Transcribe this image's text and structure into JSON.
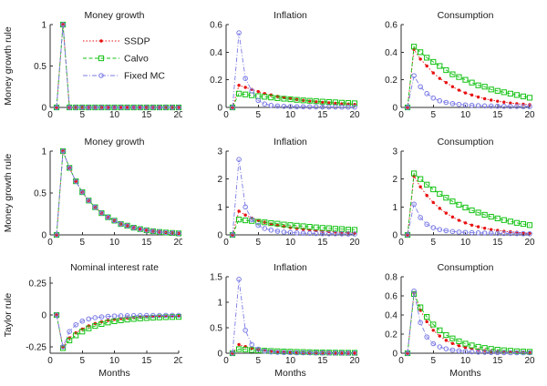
{
  "figure": {
    "background": "#ffffff",
    "axis_color": "#2f2f2f",
    "text_color": "#1a1a1a"
  },
  "legend": {
    "entries": [
      "SSDP",
      "Calvo",
      "Fixed MC"
    ],
    "box": false,
    "location": "inside-top-left-plot-1"
  },
  "series_styles": {
    "SSDP": {
      "color": "#e81111",
      "marker": "dot",
      "dash": "1.5,2"
    },
    "Calvo": {
      "color": "#12c212",
      "marker": "square",
      "dash": "4,2.5"
    },
    "Fixed MC": {
      "color": "#7b7be6",
      "marker": "circle",
      "dash": "5,2,1,2"
    }
  },
  "x_months": [
    1,
    2,
    3,
    4,
    5,
    6,
    7,
    8,
    9,
    10,
    11,
    12,
    13,
    14,
    15,
    16,
    17,
    18,
    19,
    20
  ],
  "chart_data": [
    {
      "type": "line",
      "title": "Money growth",
      "ylabel": "Money growth rule",
      "xlabel": "",
      "xlim": [
        0,
        20
      ],
      "ylim": [
        0,
        1
      ],
      "legend": true,
      "xticks": [
        0,
        5,
        10,
        15,
        20
      ],
      "xtick_labels": [
        "0",
        "5",
        "10",
        "15",
        "20"
      ],
      "yticks": [
        0,
        0.5,
        1
      ],
      "ytick_labels": [
        "0",
        "0.5",
        "1"
      ],
      "series": [
        {
          "name": "SSDP",
          "values": [
            0,
            1,
            0,
            0,
            0,
            0,
            0,
            0,
            0,
            0,
            0,
            0,
            0,
            0,
            0,
            0,
            0,
            0,
            0,
            0
          ]
        },
        {
          "name": "Calvo",
          "values": [
            0,
            1,
            0,
            0,
            0,
            0,
            0,
            0,
            0,
            0,
            0,
            0,
            0,
            0,
            0,
            0,
            0,
            0,
            0,
            0
          ]
        },
        {
          "name": "Fixed MC",
          "values": [
            0,
            1,
            0,
            0,
            0,
            0,
            0,
            0,
            0,
            0,
            0,
            0,
            0,
            0,
            0,
            0,
            0,
            0,
            0,
            0
          ]
        }
      ]
    },
    {
      "type": "line",
      "title": "Inflation",
      "ylabel": "",
      "xlabel": "",
      "xlim": [
        0,
        20
      ],
      "ylim": [
        0,
        0.6
      ],
      "legend": false,
      "xticks": [
        0,
        5,
        10,
        15,
        20
      ],
      "xtick_labels": [
        "0",
        "5",
        "10",
        "15",
        "20"
      ],
      "yticks": [
        0,
        0.2,
        0.4,
        0.6
      ],
      "ytick_labels": [
        "0",
        "0.2",
        "0.4",
        "0.6"
      ],
      "series": [
        {
          "name": "SSDP",
          "values": [
            0,
            0.16,
            0.145,
            0.13,
            0.115,
            0.1,
            0.09,
            0.08,
            0.072,
            0.064,
            0.057,
            0.051,
            0.046,
            0.041,
            0.037,
            0.033,
            0.03,
            0.027,
            0.024,
            0.022
          ]
        },
        {
          "name": "Calvo",
          "values": [
            0,
            0.1,
            0.094,
            0.088,
            0.082,
            0.077,
            0.072,
            0.067,
            0.063,
            0.059,
            0.055,
            0.051,
            0.048,
            0.045,
            0.042,
            0.039,
            0.037,
            0.034,
            0.032,
            0.03
          ]
        },
        {
          "name": "Fixed MC",
          "values": [
            0,
            0.54,
            0.21,
            0.12,
            0.05,
            0.025,
            0.015,
            0.01,
            0.008,
            0.006,
            0.005,
            0.005,
            0.004,
            0.004,
            0.003,
            0.003,
            0.003,
            0.002,
            0.002,
            0.002
          ]
        }
      ]
    },
    {
      "type": "line",
      "title": "Consumption",
      "ylabel": "",
      "xlabel": "",
      "xlim": [
        0,
        20
      ],
      "ylim": [
        0,
        0.6
      ],
      "legend": false,
      "xticks": [
        0,
        5,
        10,
        15,
        20
      ],
      "xtick_labels": [
        "0",
        "5",
        "10",
        "15",
        "20"
      ],
      "yticks": [
        0,
        0.2,
        0.4,
        0.6
      ],
      "ytick_labels": [
        "0",
        "0.2",
        "0.4",
        "0.6"
      ],
      "series": [
        {
          "name": "SSDP",
          "values": [
            0,
            0.42,
            0.35,
            0.3,
            0.25,
            0.21,
            0.18,
            0.15,
            0.125,
            0.105,
            0.09,
            0.075,
            0.063,
            0.053,
            0.045,
            0.038,
            0.032,
            0.027,
            0.023,
            0.02
          ]
        },
        {
          "name": "Calvo",
          "values": [
            0,
            0.44,
            0.4,
            0.36,
            0.33,
            0.3,
            0.27,
            0.24,
            0.22,
            0.2,
            0.18,
            0.16,
            0.15,
            0.13,
            0.12,
            0.11,
            0.1,
            0.09,
            0.08,
            0.07
          ]
        },
        {
          "name": "Fixed MC",
          "values": [
            0,
            0.23,
            0.15,
            0.1,
            0.068,
            0.048,
            0.036,
            0.028,
            0.022,
            0.018,
            0.015,
            0.013,
            0.011,
            0.01,
            0.009,
            0.008,
            0.007,
            0.007,
            0.006,
            0.006
          ]
        }
      ]
    },
    {
      "type": "line",
      "title": "Money growth",
      "ylabel": "Money growth rule",
      "xlabel": "",
      "xlim": [
        0,
        20
      ],
      "ylim": [
        0,
        1
      ],
      "legend": false,
      "xticks": [
        0,
        5,
        10,
        15,
        20
      ],
      "xtick_labels": [
        "0",
        "5",
        "10",
        "15",
        "20"
      ],
      "yticks": [
        0,
        0.5,
        1
      ],
      "ytick_labels": [
        "0",
        "0.5",
        "1"
      ],
      "series": [
        {
          "name": "SSDP",
          "values": [
            0,
            1,
            0.8,
            0.64,
            0.51,
            0.41,
            0.33,
            0.26,
            0.21,
            0.17,
            0.13,
            0.11,
            0.086,
            0.069,
            0.055,
            0.044,
            0.035,
            0.028,
            0.023,
            0.018
          ]
        },
        {
          "name": "Calvo",
          "values": [
            0,
            1,
            0.8,
            0.64,
            0.51,
            0.41,
            0.33,
            0.26,
            0.21,
            0.17,
            0.13,
            0.11,
            0.086,
            0.069,
            0.055,
            0.044,
            0.035,
            0.028,
            0.023,
            0.018
          ]
        },
        {
          "name": "Fixed MC",
          "values": [
            0,
            1,
            0.8,
            0.64,
            0.51,
            0.41,
            0.33,
            0.26,
            0.21,
            0.17,
            0.13,
            0.11,
            0.086,
            0.069,
            0.055,
            0.044,
            0.035,
            0.028,
            0.023,
            0.018
          ]
        }
      ]
    },
    {
      "type": "line",
      "title": "Inflation",
      "ylabel": "",
      "xlabel": "",
      "xlim": [
        0,
        20
      ],
      "ylim": [
        0,
        3
      ],
      "legend": false,
      "xticks": [
        0,
        5,
        10,
        15,
        20
      ],
      "xtick_labels": [
        "0",
        "5",
        "10",
        "15",
        "20"
      ],
      "yticks": [
        0,
        1,
        2,
        3
      ],
      "ytick_labels": [
        "0",
        "1",
        "2",
        "3"
      ],
      "series": [
        {
          "name": "SSDP",
          "values": [
            0,
            0.85,
            0.71,
            0.6,
            0.52,
            0.45,
            0.39,
            0.34,
            0.3,
            0.26,
            0.23,
            0.2,
            0.17,
            0.15,
            0.13,
            0.12,
            0.1,
            0.09,
            0.08,
            0.07
          ]
        },
        {
          "name": "Calvo",
          "values": [
            0,
            0.55,
            0.52,
            0.5,
            0.47,
            0.45,
            0.42,
            0.4,
            0.37,
            0.35,
            0.33,
            0.31,
            0.29,
            0.27,
            0.25,
            0.24,
            0.22,
            0.21,
            0.19,
            0.18
          ]
        },
        {
          "name": "Fixed MC",
          "values": [
            0,
            2.7,
            1.0,
            0.55,
            0.34,
            0.23,
            0.17,
            0.13,
            0.1,
            0.085,
            0.07,
            0.06,
            0.055,
            0.05,
            0.045,
            0.04,
            0.04,
            0.035,
            0.03,
            0.03
          ]
        }
      ]
    },
    {
      "type": "line",
      "title": "Consumption",
      "ylabel": "",
      "xlabel": "",
      "xlim": [
        0,
        20
      ],
      "ylim": [
        0,
        3
      ],
      "legend": false,
      "xticks": [
        0,
        5,
        10,
        15,
        20
      ],
      "xtick_labels": [
        "0",
        "5",
        "10",
        "15",
        "20"
      ],
      "yticks": [
        0,
        1,
        2,
        3
      ],
      "ytick_labels": [
        "0",
        "1",
        "2",
        "3"
      ],
      "series": [
        {
          "name": "SSDP",
          "values": [
            0,
            2.1,
            1.72,
            1.41,
            1.16,
            0.95,
            0.78,
            0.64,
            0.52,
            0.43,
            0.35,
            0.29,
            0.24,
            0.19,
            0.16,
            0.13,
            0.11,
            0.09,
            0.07,
            0.06
          ]
        },
        {
          "name": "Calvo",
          "values": [
            0,
            2.2,
            2.0,
            1.8,
            1.63,
            1.47,
            1.33,
            1.2,
            1.08,
            0.98,
            0.88,
            0.8,
            0.72,
            0.65,
            0.59,
            0.53,
            0.48,
            0.43,
            0.39,
            0.35
          ]
        },
        {
          "name": "Fixed MC",
          "values": [
            0,
            1.1,
            0.62,
            0.38,
            0.26,
            0.19,
            0.15,
            0.12,
            0.1,
            0.09,
            0.08,
            0.07,
            0.065,
            0.06,
            0.055,
            0.05,
            0.048,
            0.045,
            0.042,
            0.04
          ]
        }
      ]
    },
    {
      "type": "line",
      "title": "Nominal interest rate",
      "ylabel": "Taylor rule",
      "xlabel": "Months",
      "xlim": [
        0,
        20
      ],
      "ylim": [
        -0.3,
        0.3
      ],
      "legend": false,
      "xticks": [
        0,
        5,
        10,
        15,
        20
      ],
      "xtick_labels": [
        "0",
        "5",
        "10",
        "15",
        "20"
      ],
      "yticks": [
        -0.25,
        0,
        0.25
      ],
      "ytick_labels": [
        "-0.25",
        "0",
        "0.25"
      ],
      "series": [
        {
          "name": "SSDP",
          "values": [
            0,
            -0.25,
            -0.18,
            -0.14,
            -0.11,
            -0.085,
            -0.067,
            -0.053,
            -0.042,
            -0.034,
            -0.028,
            -0.023,
            -0.019,
            -0.016,
            -0.014,
            -0.012,
            -0.011,
            -0.01,
            -0.009,
            -0.008
          ]
        },
        {
          "name": "Calvo",
          "values": [
            0,
            -0.26,
            -0.2,
            -0.16,
            -0.13,
            -0.105,
            -0.086,
            -0.071,
            -0.059,
            -0.049,
            -0.042,
            -0.036,
            -0.031,
            -0.027,
            -0.024,
            -0.021,
            -0.019,
            -0.017,
            -0.016,
            -0.015
          ]
        },
        {
          "name": "Fixed MC",
          "values": [
            0,
            -0.25,
            -0.13,
            -0.077,
            -0.048,
            -0.031,
            -0.021,
            -0.015,
            -0.011,
            -0.008,
            -0.007,
            -0.006,
            -0.005,
            -0.005,
            -0.004,
            -0.004,
            -0.004,
            -0.003,
            -0.003,
            -0.003
          ]
        }
      ]
    },
    {
      "type": "line",
      "title": "Inflation",
      "ylabel": "",
      "xlabel": "Months",
      "xlim": [
        0,
        20
      ],
      "ylim": [
        0,
        1.5
      ],
      "legend": false,
      "xticks": [
        0,
        5,
        10,
        15,
        20
      ],
      "xtick_labels": [
        "0",
        "5",
        "10",
        "15",
        "20"
      ],
      "yticks": [
        0,
        0.5,
        1,
        1.5
      ],
      "ytick_labels": [
        "0",
        "0.5",
        "1",
        "1.5"
      ],
      "series": [
        {
          "name": "SSDP",
          "values": [
            0,
            0.17,
            0.13,
            0.1,
            0.075,
            0.056,
            0.042,
            0.031,
            0.023,
            0.017,
            0.013,
            0.01,
            0.008,
            0.006,
            0.005,
            0.004,
            0.003,
            0.003,
            0.002,
            0.002
          ]
        },
        {
          "name": "Calvo",
          "values": [
            0,
            0.08,
            0.072,
            0.064,
            0.057,
            0.05,
            0.044,
            0.039,
            0.034,
            0.03,
            0.026,
            0.023,
            0.02,
            0.017,
            0.015,
            0.013,
            0.011,
            0.01,
            0.009,
            0.008
          ]
        },
        {
          "name": "Fixed MC",
          "values": [
            0,
            1.45,
            0.45,
            0.17,
            0.08,
            0.04,
            0.025,
            0.018,
            0.014,
            0.011,
            0.009,
            0.008,
            0.007,
            0.006,
            0.005,
            0.005,
            0.004,
            0.004,
            0.003,
            0.003
          ]
        }
      ]
    },
    {
      "type": "line",
      "title": "Consumption",
      "ylabel": "",
      "xlabel": "Months",
      "xlim": [
        0,
        20
      ],
      "ylim": [
        0,
        0.8
      ],
      "legend": false,
      "xticks": [
        0,
        5,
        10,
        15,
        20
      ],
      "xtick_labels": [
        "0",
        "5",
        "10",
        "15",
        "20"
      ],
      "yticks": [
        0,
        0.2,
        0.4,
        0.6,
        0.8
      ],
      "ytick_labels": [
        "0",
        "0.2",
        "0.4",
        "0.6",
        "0.8"
      ],
      "series": [
        {
          "name": "SSDP",
          "values": [
            0,
            0.63,
            0.45,
            0.33,
            0.24,
            0.18,
            0.135,
            0.102,
            0.078,
            0.06,
            0.046,
            0.036,
            0.028,
            0.022,
            0.017,
            0.014,
            0.011,
            0.009,
            0.007,
            0.006
          ]
        },
        {
          "name": "Calvo",
          "values": [
            0,
            0.62,
            0.48,
            0.38,
            0.3,
            0.24,
            0.19,
            0.155,
            0.125,
            0.1,
            0.082,
            0.067,
            0.055,
            0.045,
            0.037,
            0.031,
            0.026,
            0.021,
            0.018,
            0.015
          ]
        },
        {
          "name": "Fixed MC",
          "values": [
            0,
            0.65,
            0.32,
            0.17,
            0.1,
            0.066,
            0.046,
            0.033,
            0.025,
            0.019,
            0.015,
            0.012,
            0.01,
            0.008,
            0.007,
            0.006,
            0.005,
            0.005,
            0.004,
            0.004
          ]
        }
      ]
    }
  ]
}
